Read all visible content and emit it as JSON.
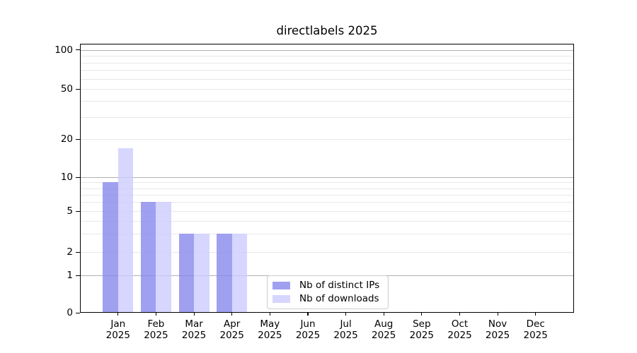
{
  "chart_data": {
    "type": "bar",
    "title": "directlabels 2025",
    "categories": [
      "Jan",
      "Feb",
      "Mar",
      "Apr",
      "May",
      "Jun",
      "Jul",
      "Aug",
      "Sep",
      "Oct",
      "Nov",
      "Dec"
    ],
    "year_label": "2025",
    "series": [
      {
        "name": "Nb of distinct IPs",
        "color": "#8888ee",
        "values": [
          9,
          6,
          3,
          3,
          0,
          0,
          0,
          0,
          0,
          0,
          0,
          0
        ]
      },
      {
        "name": "Nb of downloads",
        "color": "#ccccff",
        "values": [
          17,
          6,
          3,
          3,
          0,
          0,
          0,
          0,
          0,
          0,
          0,
          0
        ]
      }
    ],
    "bar_alpha": 0.8,
    "yscale": "log (with zero baseline)",
    "y_tick_labels": [
      100,
      50,
      20,
      10,
      5,
      2,
      1,
      0
    ],
    "y_major_gridlines": [
      1,
      10,
      100
    ],
    "y_minor_gridlines": [
      2,
      3,
      4,
      5,
      6,
      7,
      8,
      9,
      20,
      30,
      40,
      50,
      60,
      70,
      80,
      90
    ],
    "ylim": [
      0,
      112
    ],
    "grid": "on",
    "legend_position": "lower center",
    "xlabel": "",
    "ylabel": "",
    "colors": {
      "major_grid": "#b0b0b0",
      "minor_grid": "#e8e8e8",
      "frame": "#000000",
      "legend_border": "#cccccc"
    }
  }
}
